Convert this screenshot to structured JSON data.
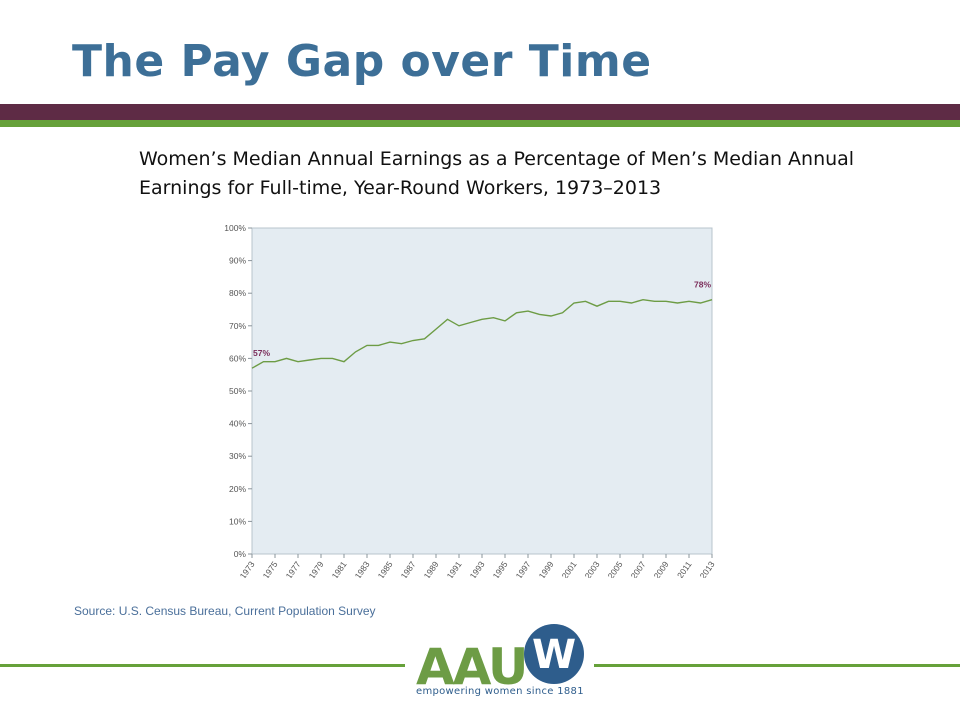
{
  "slide": {
    "title": "The Pay Gap over Time",
    "source": "Source: U.S. Census Bureau, Current Population Survey"
  },
  "logo": {
    "letters": "AAU",
    "w": "W",
    "tagline": "empowering women since 1881"
  },
  "colors": {
    "title": "#3d6f97",
    "band_maroon": "#5e2b45",
    "band_green": "#66a13a",
    "line": "#6d9c45",
    "annotation": "#7b2d5a",
    "plot_bg": "#e4ecf2"
  },
  "chart_data": {
    "type": "line",
    "title": "Women’s Median Annual Earnings as a Percentage of Men’s Median Annual Earnings for Full-time, Year-Round Workers, 1973–2013",
    "x": [
      1973,
      1974,
      1975,
      1976,
      1977,
      1978,
      1979,
      1980,
      1981,
      1982,
      1983,
      1984,
      1985,
      1986,
      1987,
      1988,
      1989,
      1990,
      1991,
      1992,
      1993,
      1994,
      1995,
      1996,
      1997,
      1998,
      1999,
      2000,
      2001,
      2002,
      2003,
      2004,
      2005,
      2006,
      2007,
      2008,
      2009,
      2010,
      2011,
      2012,
      2013
    ],
    "series": [
      {
        "values": [
          57,
          59,
          59,
          60,
          59,
          59.5,
          60,
          60,
          59,
          62,
          64,
          64,
          65,
          64.5,
          65.5,
          66,
          69,
          72,
          70,
          71,
          72,
          72.5,
          71.5,
          74,
          74.5,
          73.5,
          73,
          74,
          77,
          77.5,
          76,
          77.5,
          77.5,
          77,
          78,
          77.5,
          77.5,
          77,
          77.5,
          77,
          78
        ]
      }
    ],
    "x_tick_labels": [
      "1973",
      "1975",
      "1977",
      "1979",
      "1981",
      "1983",
      "1985",
      "1987",
      "1989",
      "1991",
      "1993",
      "1995",
      "1997",
      "1999",
      "2001",
      "2003",
      "2005",
      "2007",
      "2009",
      "2011",
      "2013"
    ],
    "y_tick_labels": [
      "0%",
      "10%",
      "20%",
      "30%",
      "40%",
      "50%",
      "60%",
      "70%",
      "80%",
      "90%",
      "100%"
    ],
    "ylim": [
      0,
      100
    ],
    "xlim": [
      1973,
      2013
    ],
    "grid": false,
    "annotations": [
      {
        "x": 1973,
        "y": 57,
        "text": "57%"
      },
      {
        "x": 2013,
        "y": 78,
        "text": "78%"
      }
    ]
  }
}
